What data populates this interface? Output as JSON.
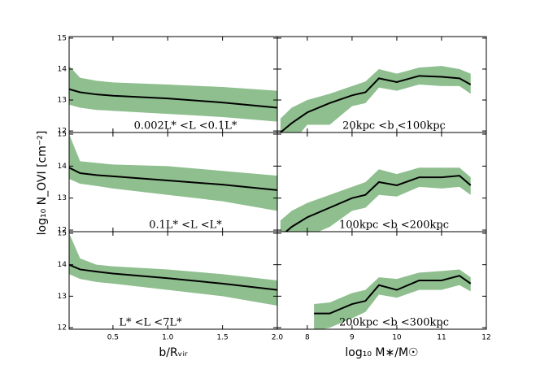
{
  "chart_data": [
    {
      "type": "line",
      "annotation": "0.002L* <L <0.1L*",
      "ylabel": "log₁₀ N_OVI [cm⁻²]",
      "x": [
        0.1,
        0.2,
        0.35,
        0.5,
        1.0,
        1.5,
        2.0
      ],
      "values": [
        13.35,
        13.25,
        13.18,
        13.14,
        13.05,
        12.92,
        12.75
      ],
      "upper": [
        14.1,
        13.72,
        13.62,
        13.57,
        13.5,
        13.42,
        13.3
      ],
      "lower": [
        12.85,
        12.75,
        12.68,
        12.65,
        12.55,
        12.45,
        12.3
      ],
      "color": "#000000",
      "band_color": "#8fbf8f",
      "xlim": [
        0.1,
        2.0
      ],
      "ylim": [
        11.95,
        15.05
      ],
      "yticks": [
        12,
        13,
        14,
        15
      ],
      "xticks": [
        0.5,
        {
          "value": 1,
          "label": "1.0"
        },
        1.5,
        {
          "value": 2,
          "label": "2.0"
        }
      ],
      "show_xtick_labels": false,
      "show_ytick_labels": true
    },
    {
      "type": "line",
      "annotation": "20kpc <b <100kpc",
      "x": [
        7.4,
        7.65,
        8,
        8.5,
        9,
        9.3,
        9.6,
        10,
        10.5,
        11,
        11.4,
        11.65
      ],
      "values": [
        11.95,
        12.25,
        12.6,
        12.9,
        13.15,
        13.25,
        13.7,
        13.58,
        13.78,
        13.75,
        13.7,
        13.5
      ],
      "upper": [
        12.4,
        12.75,
        13.0,
        13.2,
        13.45,
        13.6,
        14.0,
        13.85,
        14.05,
        14.1,
        14.0,
        13.85
      ],
      "lower": [
        11.5,
        11.6,
        12.2,
        12.2,
        12.8,
        12.9,
        13.4,
        13.3,
        13.5,
        13.45,
        13.45,
        13.2
      ],
      "color": "#000000",
      "band_color": "#8fbf8f",
      "xlim": [
        7.33,
        12
      ],
      "ylim": [
        11.95,
        15.05
      ],
      "yticks": [
        12,
        13,
        14,
        15
      ],
      "xticks": [
        8,
        9,
        10,
        11,
        12
      ],
      "show_xtick_labels": false,
      "show_ytick_labels": false
    },
    {
      "type": "line",
      "annotation": "0.1L* <L <L*",
      "x": [
        0.1,
        0.2,
        0.35,
        0.5,
        1.0,
        1.5,
        2.0
      ],
      "values": [
        13.95,
        13.78,
        13.72,
        13.68,
        13.55,
        13.42,
        13.25
      ],
      "upper": [
        15.0,
        14.15,
        14.1,
        14.05,
        14.0,
        13.85,
        13.7
      ],
      "lower": [
        13.6,
        13.45,
        13.38,
        13.3,
        13.1,
        12.9,
        12.6
      ],
      "color": "#000000",
      "band_color": "#8fbf8f",
      "xlim": [
        0.1,
        2.0
      ],
      "ylim": [
        11.95,
        15.05
      ],
      "yticks": [
        12,
        13,
        14,
        15
      ],
      "xticks": [
        0.5,
        {
          "value": 1,
          "label": "1.0"
        },
        1.5,
        {
          "value": 2,
          "label": "2.0"
        }
      ],
      "show_xtick_labels": false,
      "show_ytick_labels": true
    },
    {
      "type": "line",
      "annotation": "100kpc <b <200kpc",
      "x": [
        7.4,
        7.65,
        8,
        8.5,
        9,
        9.3,
        9.6,
        10,
        10.5,
        11,
        11.4,
        11.65
      ],
      "values": [
        11.8,
        12.1,
        12.4,
        12.7,
        13.0,
        13.1,
        13.5,
        13.4,
        13.65,
        13.65,
        13.7,
        13.4
      ],
      "upper": [
        12.3,
        12.6,
        12.85,
        13.1,
        13.35,
        13.5,
        13.9,
        13.75,
        13.95,
        13.95,
        13.95,
        13.65
      ],
      "lower": [
        11.5,
        11.5,
        11.8,
        12.1,
        12.6,
        12.7,
        13.1,
        13.05,
        13.35,
        13.3,
        13.35,
        13.1
      ],
      "color": "#000000",
      "band_color": "#8fbf8f",
      "xlim": [
        7.33,
        12
      ],
      "ylim": [
        11.95,
        15.05
      ],
      "yticks": [
        12,
        13,
        14,
        15
      ],
      "xticks": [
        8,
        9,
        10,
        11,
        12
      ],
      "show_xtick_labels": false,
      "show_ytick_labels": false
    },
    {
      "type": "line",
      "annotation": "L* <L <7L*",
      "xlabel": "b/Rᵥᵢᵣ",
      "x": [
        0.1,
        0.2,
        0.35,
        0.5,
        1.0,
        1.5,
        2.0
      ],
      "values": [
        14.0,
        13.85,
        13.78,
        13.72,
        13.57,
        13.4,
        13.2
      ],
      "upper": [
        15.0,
        14.2,
        14.0,
        13.95,
        13.85,
        13.7,
        13.5
      ],
      "lower": [
        13.7,
        13.55,
        13.45,
        13.4,
        13.2,
        13.0,
        12.7
      ],
      "color": "#000000",
      "band_color": "#8fbf8f",
      "xlim": [
        0.1,
        2.0
      ],
      "ylim": [
        11.95,
        15.05
      ],
      "yticks": [
        12,
        13,
        14,
        15
      ],
      "xticks": [
        0.5,
        {
          "value": 1,
          "label": "1.0"
        },
        1.5,
        {
          "value": 2,
          "label": "2.0"
        }
      ],
      "show_xtick_labels": true,
      "show_ytick_labels": true
    },
    {
      "type": "line",
      "annotation": "200kpc <b <300kpc",
      "xlabel": "log₁₀ M∗/M☉",
      "x": [
        8.15,
        8.5,
        9,
        9.3,
        9.6,
        10,
        10.5,
        11,
        11.4,
        11.65
      ],
      "values": [
        12.45,
        12.45,
        12.75,
        12.85,
        13.35,
        13.2,
        13.5,
        13.5,
        13.65,
        13.4
      ],
      "upper": [
        12.75,
        12.8,
        13.1,
        13.2,
        13.6,
        13.55,
        13.75,
        13.8,
        13.85,
        13.6
      ],
      "lower": [
        11.9,
        12.0,
        12.3,
        12.5,
        13.05,
        12.95,
        13.2,
        13.2,
        13.35,
        13.15
      ],
      "color": "#000000",
      "band_color": "#8fbf8f",
      "xlim": [
        7.33,
        12
      ],
      "ylim": [
        11.95,
        15.05
      ],
      "yticks": [
        12,
        13,
        14,
        15
      ],
      "xticks": [
        8,
        9,
        10,
        11,
        12
      ],
      "show_xtick_labels": true,
      "show_ytick_labels": false
    }
  ]
}
